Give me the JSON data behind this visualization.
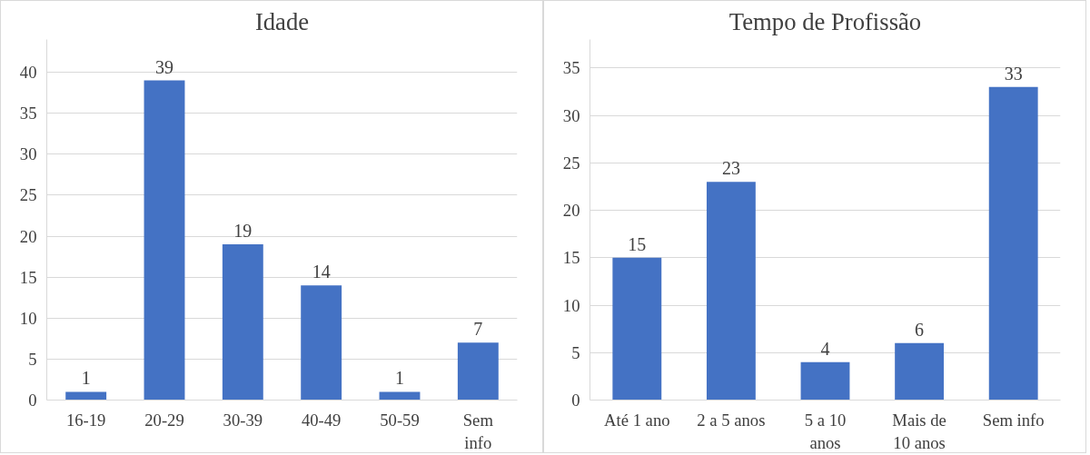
{
  "chart_data": [
    {
      "type": "bar",
      "title": "Idade",
      "categories": [
        "16-19",
        "20-29",
        "30-39",
        "40-49",
        "50-59",
        "Sem info"
      ],
      "values": [
        1,
        39,
        19,
        14,
        1,
        7
      ],
      "color": "#4472c4",
      "ylim": [
        0,
        44
      ],
      "yticks": [
        0,
        5,
        10,
        15,
        20,
        25,
        30,
        35,
        40
      ],
      "grid": "y",
      "data_labels": true
    },
    {
      "type": "bar",
      "title": "Tempo de Profissão",
      "categories": [
        "Até 1 ano",
        "2 a 5 anos",
        "5 a 10 anos",
        "Mais de 10 anos",
        "Sem info"
      ],
      "values": [
        15,
        23,
        4,
        6,
        33
      ],
      "color": "#4472c4",
      "ylim": [
        0,
        38
      ],
      "yticks": [
        0,
        5,
        10,
        15,
        20,
        25,
        30,
        35
      ],
      "grid": "y",
      "data_labels": true
    }
  ]
}
